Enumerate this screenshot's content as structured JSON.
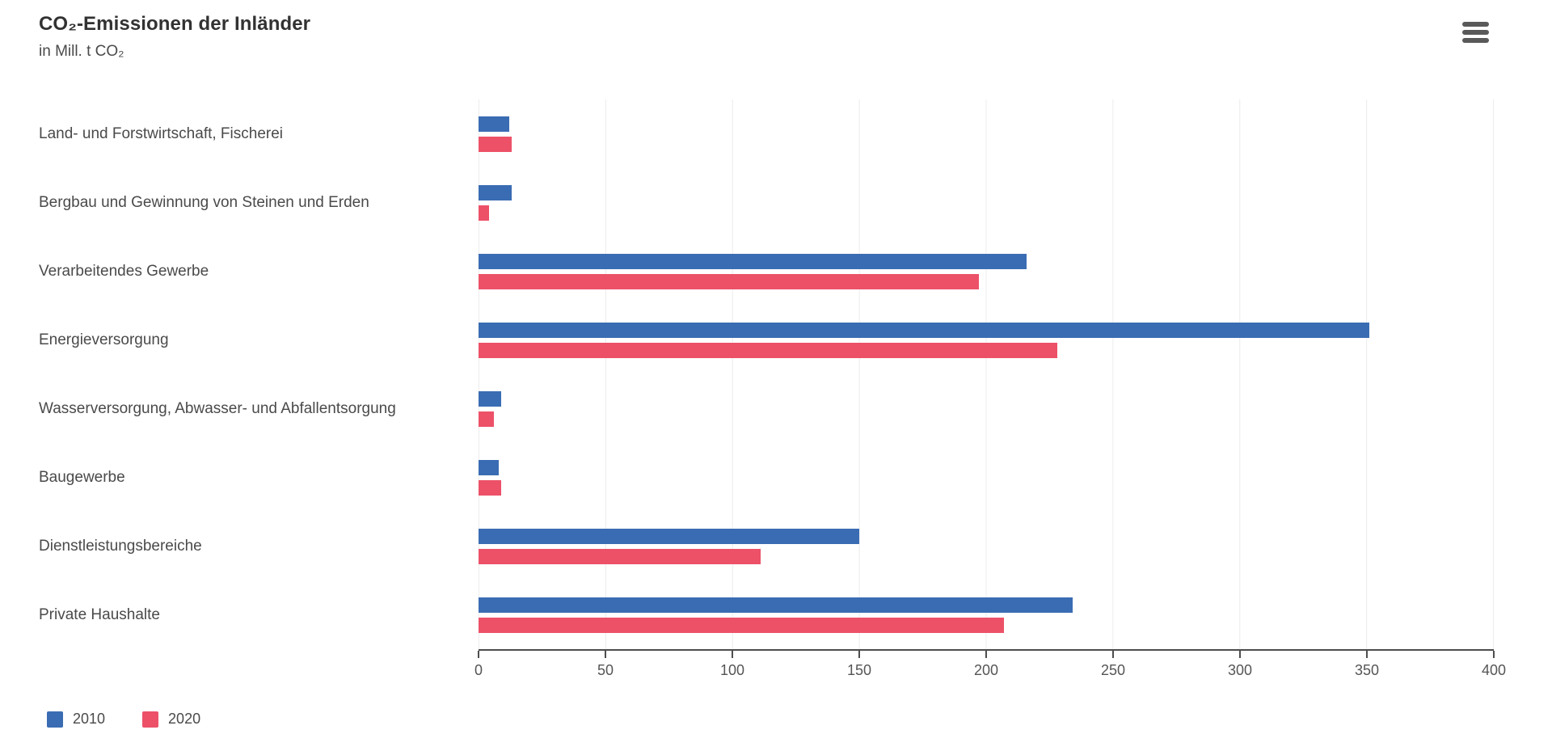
{
  "header": {
    "title": "CO₂-Emissionen der Inländer",
    "subtitle": "in Mill. t CO₂",
    "menu_icon": "hamburger-menu-icon"
  },
  "chart_data": {
    "type": "bar",
    "orientation": "horizontal",
    "title": "CO₂-Emissionen der Inländer",
    "unit": "Mill. t CO₂",
    "categories": [
      "Land- und Forstwirtschaft, Fischerei",
      "Bergbau und Gewinnung von Steinen und Erden",
      "Verarbeitendes Gewerbe",
      "Energieversorgung",
      "Wasserversorgung, Abwasser- und Abfallentsorgung",
      "Baugewerbe",
      "Dienstleistungsbereiche",
      "Private Haushalte"
    ],
    "series": [
      {
        "name": "2010",
        "color": "#3A6CB3",
        "values": [
          12,
          13,
          216,
          351,
          9,
          8,
          150,
          234
        ]
      },
      {
        "name": "2020",
        "color": "#EC5168",
        "values": [
          13,
          4,
          197,
          228,
          6,
          9,
          111,
          207
        ]
      }
    ],
    "x_ticks": [
      "0",
      "50",
      "100",
      "150",
      "200",
      "250",
      "300",
      "350",
      "400"
    ],
    "xlim": [
      0,
      400
    ],
    "grid": "vertical-light",
    "legend_position": "bottom-left"
  },
  "colors": {
    "series_2010": "#3A6CB3",
    "series_2020": "#EC5168",
    "axis": "#4d4d4d",
    "gridline": "#ececec",
    "text": "#4a4a4a"
  }
}
